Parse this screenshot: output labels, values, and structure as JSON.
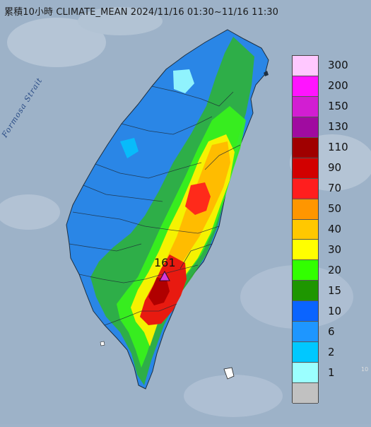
{
  "map": {
    "title": "累積10小時 CLIMATE_MEAN 2024/11/16 01:30~11/16 11:30",
    "strait_label": "Formosa Strait",
    "peak_value": "161",
    "corner_text": "10"
  },
  "legend": {
    "items": [
      {
        "label": "300",
        "color": "#ffc8ff"
      },
      {
        "label": "200",
        "color": "#ff14ff"
      },
      {
        "label": "150",
        "color": "#d21ed2"
      },
      {
        "label": "130",
        "color": "#a00ba0"
      },
      {
        "label": "110",
        "color": "#a00000"
      },
      {
        "label": "90",
        "color": "#d20000"
      },
      {
        "label": "70",
        "color": "#ff1e1e"
      },
      {
        "label": "50",
        "color": "#ff9600"
      },
      {
        "label": "40",
        "color": "#ffc800"
      },
      {
        "label": "30",
        "color": "#ffff00"
      },
      {
        "label": "20",
        "color": "#32ff00"
      },
      {
        "label": "15",
        "color": "#1e9600"
      },
      {
        "label": "10",
        "color": "#0a64ff"
      },
      {
        "label": "6",
        "color": "#1e96ff"
      },
      {
        "label": "2",
        "color": "#00c8ff"
      },
      {
        "label": "1",
        "color": "#9bffff"
      },
      {
        "label": "",
        "color": "#c1c1c1"
      }
    ]
  }
}
